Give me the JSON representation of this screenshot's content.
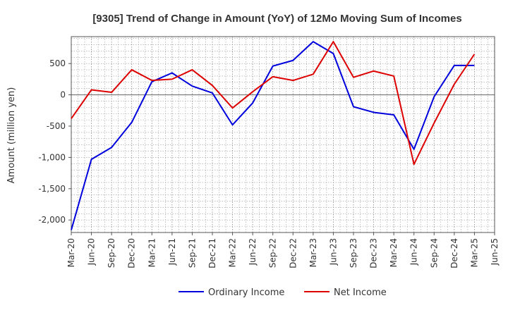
{
  "chart_data": {
    "type": "line",
    "title": "[9305]  Trend of Change in Amount (YoY) of 12Mo Moving Sum of Incomes",
    "ylabel": "Amount (million yen)",
    "xlabel": "",
    "x_tick_labels": [
      "Mar-20",
      "Jun-20",
      "Sep-20",
      "Dec-20",
      "Mar-21",
      "Jun-21",
      "Sep-21",
      "Dec-21",
      "Mar-22",
      "Jun-22",
      "Sep-22",
      "Dec-22",
      "Mar-23",
      "Jun-23",
      "Sep-23",
      "Dec-23",
      "Mar-24",
      "Jun-24",
      "Sep-24",
      "Dec-24",
      "Mar-25",
      "Jun-25"
    ],
    "y_ticks": [
      500,
      0,
      -500,
      -1000,
      -1500,
      -2000
    ],
    "y_tick_labels": [
      "500",
      "0",
      "-500",
      "-1,000",
      "-1,500",
      "-2,000"
    ],
    "ylim": [
      -2200,
      930
    ],
    "grid": true,
    "legend_position": "bottom-center",
    "series": [
      {
        "name": "Ordinary Income",
        "color": "#0000dd",
        "values": [
          -2160,
          -1030,
          -840,
          -440,
          210,
          350,
          140,
          30,
          -480,
          -130,
          460,
          550,
          850,
          660,
          -190,
          -280,
          -320,
          -870,
          -30,
          470,
          470,
          null
        ]
      },
      {
        "name": "Net Income",
        "color": "#dd0000",
        "values": [
          -380,
          80,
          40,
          400,
          230,
          250,
          400,
          150,
          -210,
          50,
          290,
          230,
          330,
          850,
          280,
          380,
          300,
          -1110,
          -450,
          170,
          650,
          null
        ]
      }
    ]
  }
}
